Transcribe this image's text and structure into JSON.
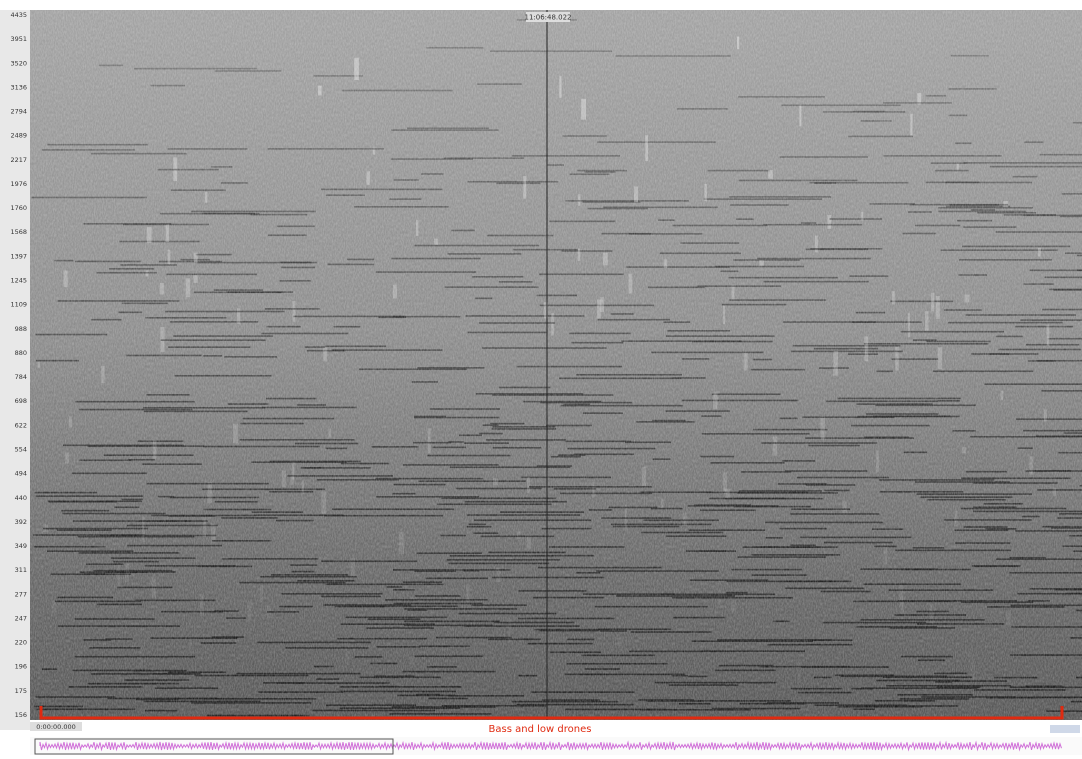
{
  "spectrogram": {
    "time_label": "11:06:48.022",
    "start_label": "0:00:00.000",
    "annotation": "Bass and low drones",
    "frequency_labels": [
      4435,
      3951,
      3520,
      3136,
      2794,
      2489,
      2217,
      1976,
      1760,
      1568,
      1397,
      1245,
      1109,
      988,
      880,
      784,
      698,
      622,
      554,
      494,
      440,
      392,
      349,
      311,
      277,
      247,
      220,
      196,
      175,
      156
    ]
  }
}
